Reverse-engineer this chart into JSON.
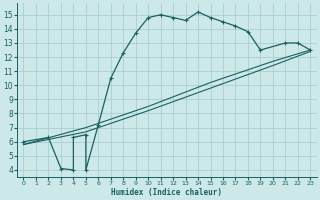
{
  "xlabel": "Humidex (Indice chaleur)",
  "bg_color": "#cde8e8",
  "grid_color": "#aacece",
  "line_color": "#1a6060",
  "xlim": [
    -0.5,
    23.5
  ],
  "ylim": [
    3.5,
    15.8
  ],
  "yticks": [
    4,
    5,
    6,
    7,
    8,
    9,
    10,
    11,
    12,
    13,
    14,
    15
  ],
  "xticks": [
    0,
    1,
    2,
    3,
    4,
    5,
    6,
    7,
    8,
    9,
    10,
    11,
    12,
    13,
    14,
    15,
    16,
    17,
    18,
    19,
    20,
    21,
    22,
    23
  ],
  "line1_x": [
    0,
    2,
    3,
    4,
    4,
    5,
    5,
    6,
    7,
    8,
    9,
    10,
    11,
    12,
    13,
    14,
    15,
    16,
    17,
    18,
    19,
    21,
    22,
    23
  ],
  "line1_y": [
    6.0,
    6.3,
    4.1,
    4.0,
    6.3,
    6.5,
    4.0,
    7.2,
    10.5,
    12.3,
    13.7,
    14.8,
    15.0,
    14.8,
    14.6,
    15.2,
    14.8,
    14.5,
    14.2,
    13.8,
    12.5,
    13.0,
    13.0,
    12.5
  ],
  "line2_x": [
    0,
    23
  ],
  "line2_y": [
    5.9,
    12.5
  ],
  "line3_x": [
    0,
    23
  ],
  "line3_y": [
    5.9,
    12.5
  ],
  "diag1_x": [
    0,
    5,
    10,
    15,
    20,
    23
  ],
  "diag1_y": [
    5.8,
    7.0,
    8.5,
    10.2,
    11.7,
    12.5
  ],
  "diag2_x": [
    0,
    5,
    10,
    15,
    20,
    23
  ],
  "diag2_y": [
    5.8,
    6.7,
    8.2,
    9.8,
    11.4,
    12.4
  ]
}
